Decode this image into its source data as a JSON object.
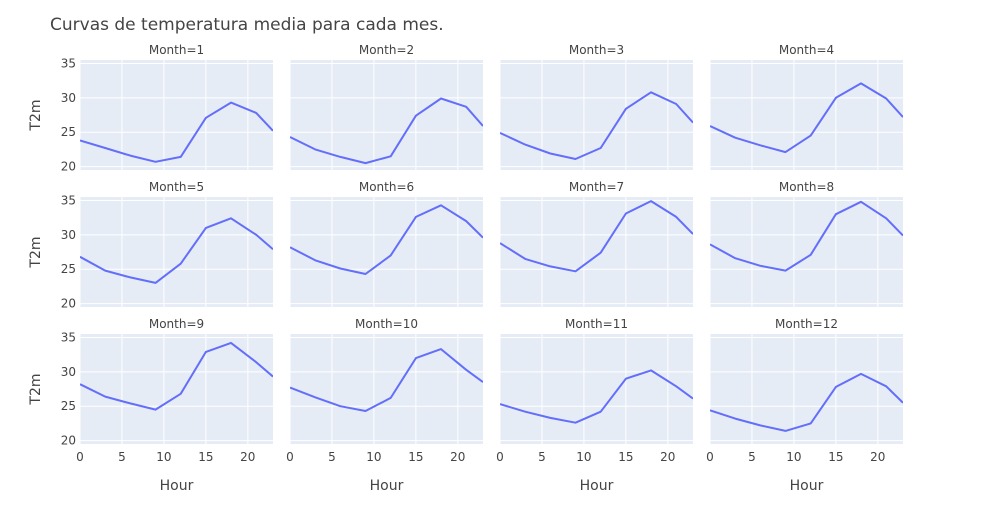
{
  "chart_data": {
    "type": "line",
    "title": "Curvas de temperatura media para cada mes.",
    "xlabel": "Hour",
    "ylabel": "T2m",
    "xlim": [
      0,
      23
    ],
    "ylim": [
      19.5,
      35.5
    ],
    "x_ticks": [
      0,
      5,
      10,
      15,
      20
    ],
    "y_ticks": [
      20,
      25,
      30,
      35
    ],
    "grid": true,
    "facet_layout": {
      "rows": 3,
      "cols": 4
    },
    "colors": {
      "line": "#636efa",
      "plot_bg": "#e5ecf6",
      "grid": "#ffffff",
      "text": "#444444"
    },
    "x": [
      0,
      3,
      6,
      9,
      12,
      15,
      18,
      21,
      23
    ],
    "panels": [
      {
        "label": "Month=1",
        "values": [
          23.8,
          22.7,
          21.6,
          20.7,
          21.4,
          27.1,
          29.3,
          27.8,
          25.2
        ]
      },
      {
        "label": "Month=2",
        "values": [
          24.3,
          22.5,
          21.4,
          20.5,
          21.5,
          27.4,
          29.9,
          28.7,
          25.9
        ]
      },
      {
        "label": "Month=3",
        "values": [
          24.9,
          23.2,
          21.9,
          21.1,
          22.7,
          28.4,
          30.8,
          29.1,
          26.4
        ]
      },
      {
        "label": "Month=4",
        "values": [
          25.9,
          24.2,
          23.1,
          22.1,
          24.5,
          30.0,
          32.1,
          29.9,
          27.2
        ]
      },
      {
        "label": "Month=5",
        "values": [
          26.8,
          24.8,
          23.8,
          23.0,
          25.8,
          31.0,
          32.4,
          30.0,
          27.9
        ]
      },
      {
        "label": "Month=6",
        "values": [
          28.2,
          26.3,
          25.1,
          24.3,
          27.0,
          32.6,
          34.3,
          32.0,
          29.6
        ]
      },
      {
        "label": "Month=7",
        "values": [
          28.8,
          26.5,
          25.4,
          24.7,
          27.4,
          33.1,
          34.9,
          32.6,
          30.1
        ]
      },
      {
        "label": "Month=8",
        "values": [
          28.6,
          26.6,
          25.5,
          24.8,
          27.1,
          33.0,
          34.8,
          32.4,
          29.9
        ]
      },
      {
        "label": "Month=9",
        "values": [
          28.2,
          26.4,
          25.4,
          24.5,
          26.8,
          32.9,
          34.2,
          31.4,
          29.3
        ]
      },
      {
        "label": "Month=10",
        "values": [
          27.7,
          26.3,
          25.0,
          24.3,
          26.2,
          32.0,
          33.3,
          30.3,
          28.5
        ]
      },
      {
        "label": "Month=11",
        "values": [
          25.3,
          24.2,
          23.3,
          22.6,
          24.2,
          29.0,
          30.2,
          27.9,
          26.1
        ]
      },
      {
        "label": "Month=12",
        "values": [
          24.4,
          23.2,
          22.2,
          21.4,
          22.5,
          27.8,
          29.7,
          27.9,
          25.5
        ]
      }
    ]
  }
}
